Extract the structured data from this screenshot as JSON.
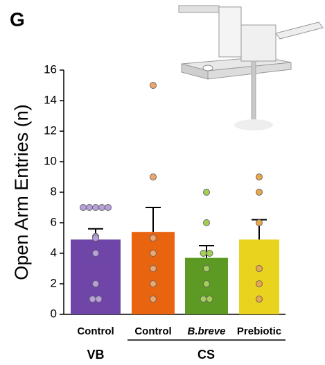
{
  "chart_data": {
    "type": "bar",
    "panel_label": "G",
    "y_label": "Open Arm Entries (n)",
    "ylim": [
      0,
      16
    ],
    "yticks": [
      0,
      2,
      4,
      6,
      8,
      10,
      12,
      14,
      16
    ],
    "groups": [
      {
        "name": "VB",
        "categories": [
          "Control"
        ],
        "values": [
          4.9
        ],
        "errors": [
          0.7
        ],
        "colors": [
          "#6f45a8"
        ],
        "point_colors": [
          "#b7a0dc"
        ],
        "points": [
          [
            7,
            7,
            7,
            7,
            7,
            5.1,
            5,
            4,
            2,
            1,
            1
          ]
        ]
      },
      {
        "name": "CS",
        "categories": [
          "Control",
          "B.breve",
          "Prebiotic"
        ],
        "values": [
          5.4,
          3.7,
          4.9
        ],
        "errors": [
          1.6,
          0.8,
          1.3
        ],
        "colors": [
          "#e8640f",
          "#5c9a24",
          "#e9d31f"
        ],
        "point_colors": [
          "#f0a66a",
          "#a3cf55",
          "#eba64a"
        ],
        "points": [
          [
            15,
            9,
            5,
            4,
            3,
            2,
            1
          ],
          [
            8,
            6,
            4,
            4,
            3,
            2,
            1,
            1
          ],
          [
            9,
            8,
            6,
            3,
            2,
            1
          ]
        ]
      }
    ]
  }
}
